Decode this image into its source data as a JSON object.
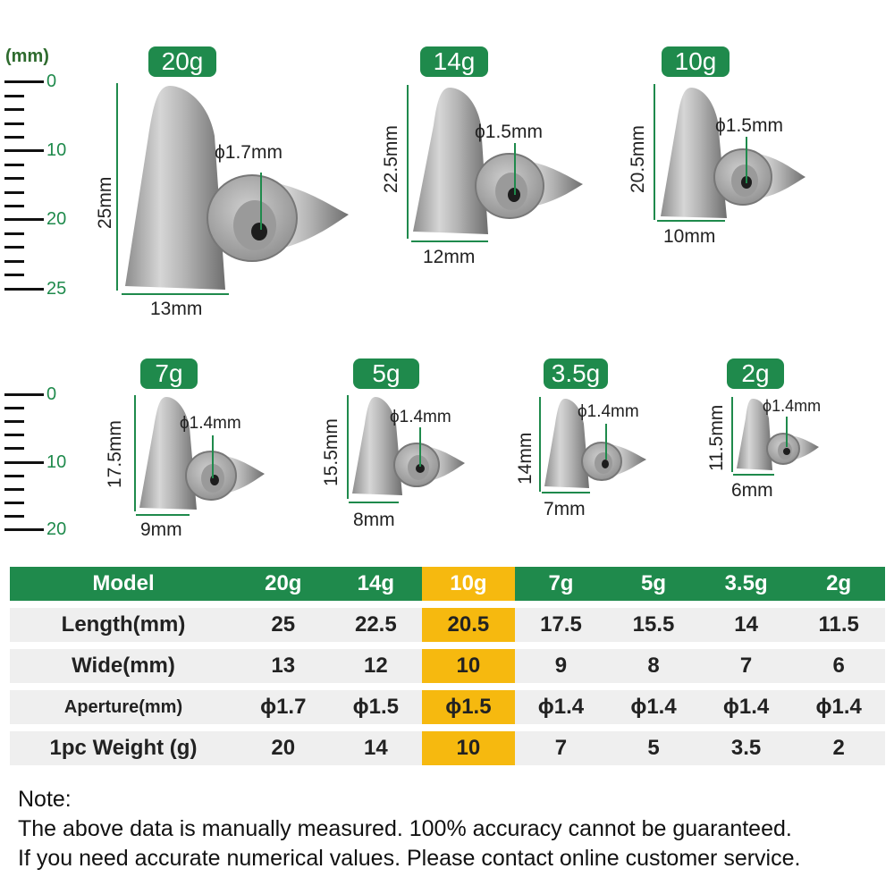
{
  "unit_label": "(mm)",
  "ruler_top": [
    "0",
    "10",
    "20",
    "25"
  ],
  "ruler_bottom": [
    "0",
    "10",
    "20"
  ],
  "products": [
    {
      "badge": "20g",
      "aperture": "ϕ1.7mm",
      "length": "25mm",
      "width": "13mm"
    },
    {
      "badge": "14g",
      "aperture": "ϕ1.5mm",
      "length": "22.5mm",
      "width": "12mm"
    },
    {
      "badge": "10g",
      "aperture": "ϕ1.5mm",
      "length": "20.5mm",
      "width": "10mm"
    },
    {
      "badge": "7g",
      "aperture": "ϕ1.4mm",
      "length": "17.5mm",
      "width": "9mm"
    },
    {
      "badge": "5g",
      "aperture": "ϕ1.4mm",
      "length": "15.5mm",
      "width": "8mm"
    },
    {
      "badge": "3.5g",
      "aperture": "ϕ1.4mm",
      "length": "14mm",
      "width": "7mm"
    },
    {
      "badge": "2g",
      "aperture": "ϕ1.4mm",
      "length": "11.5mm",
      "width": "6mm"
    }
  ],
  "table": {
    "header": [
      "Model",
      "20g",
      "14g",
      "10g",
      "7g",
      "5g",
      "3.5g",
      "2g"
    ],
    "rows": [
      [
        "Length(mm)",
        "25",
        "22.5",
        "20.5",
        "17.5",
        "15.5",
        "14",
        "11.5"
      ],
      [
        "Wide(mm)",
        "13",
        "12",
        "10",
        "9",
        "8",
        "7",
        "6"
      ],
      [
        "Aperture(mm)",
        "ϕ1.7",
        "ϕ1.5",
        "ϕ1.5",
        "ϕ1.4",
        "ϕ1.4",
        "ϕ1.4",
        "ϕ1.4"
      ],
      [
        "1pc Weight (g)",
        "20",
        "14",
        "10",
        "7",
        "5",
        "3.5",
        "2"
      ]
    ],
    "highlight_color": "#f6b90f",
    "header_color": "#1f8a4c"
  },
  "note": {
    "title": "Note:",
    "line1": "The above data is manually measured. 100% accuracy cannot be guaranteed.",
    "line2": "If you need accurate numerical values. Please contact online customer service."
  }
}
